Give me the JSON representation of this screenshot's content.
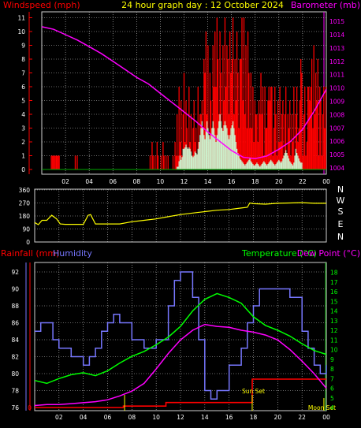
{
  "header": {
    "left_title": "Windspeed (mph)",
    "center_title": "24 hour graph day : 12 October 2024",
    "right_title": "Barometer (mb)"
  },
  "colors": {
    "background": "#000000",
    "grid": "#cfcfcf",
    "red": "#ff0000",
    "magenta": "#ff00ff",
    "yellow": "#ffff00",
    "green": "#00ff00",
    "blue": "#7777ff",
    "pale_green": "#ccf0cc",
    "dark_green": "#00aa00",
    "white": "#ffffff"
  },
  "chart_data": [
    {
      "id": "wind-pressure",
      "type": "line",
      "xlabel": "",
      "x_ticks": [
        "02",
        "04",
        "06",
        "08",
        "10",
        "12",
        "14",
        "16",
        "18",
        "20",
        "22",
        "00"
      ],
      "left_axis": {
        "label": "Windspeed (mph)",
        "ticks": [
          "0",
          "1",
          "2",
          "3",
          "4",
          "5",
          "6",
          "7",
          "8",
          "9",
          "10",
          "11"
        ],
        "ylim": [
          0,
          11.5
        ]
      },
      "right_axis": {
        "label": "Barometer (mb)",
        "ticks": [
          "1004",
          "1005",
          "1006",
          "1007",
          "1008",
          "1009",
          "1010",
          "1011",
          "1012",
          "1013",
          "1014",
          "1015"
        ],
        "ylim": [
          1003.6,
          1015.8
        ]
      },
      "series": [
        {
          "name": "Barometer (mb)",
          "axis": "right",
          "style": "line",
          "x": [
            0,
            1,
            2,
            3,
            4,
            5,
            6,
            7,
            8,
            9,
            10,
            11,
            12,
            13,
            14,
            15,
            16,
            17,
            18,
            19,
            20,
            21,
            22,
            23,
            24
          ],
          "values": [
            1014.6,
            1014.4,
            1014.0,
            1013.6,
            1013.1,
            1012.6,
            1012.0,
            1011.4,
            1010.8,
            1010.3,
            1009.6,
            1008.9,
            1008.2,
            1007.5,
            1006.7,
            1006.0,
            1005.3,
            1004.8,
            1004.7,
            1004.9,
            1005.4,
            1006.0,
            1006.9,
            1008.3,
            1009.9
          ]
        }
      ]
    },
    {
      "id": "wind-direction",
      "type": "line",
      "x_ticks": [
        "02",
        "04",
        "06",
        "08",
        "10",
        "12",
        "14",
        "16",
        "18",
        "20",
        "22",
        "00"
      ],
      "left_axis": {
        "ticks": [
          "0",
          "90",
          "180",
          "270",
          "360"
        ],
        "ylim": [
          0,
          360
        ]
      },
      "right_axis": {
        "ticks": [
          "N",
          "E",
          "S",
          "W",
          "N"
        ]
      },
      "series": [
        {
          "name": "",
          "style": "line",
          "x": [
            0,
            0.3,
            0.6,
            1,
            1.4,
            1.8,
            2.1,
            2.5,
            3,
            4,
            4.4,
            4.6,
            5,
            5.5,
            6,
            7,
            8,
            9,
            10,
            11,
            12,
            13,
            14,
            15,
            16,
            17,
            17.5,
            17.7,
            18,
            19,
            20,
            21,
            22,
            23,
            24
          ],
          "values": [
            135,
            120,
            150,
            150,
            185,
            160,
            125,
            122,
            122,
            122,
            185,
            190,
            125,
            125,
            125,
            125,
            140,
            150,
            160,
            175,
            190,
            200,
            210,
            220,
            225,
            235,
            240,
            270,
            265,
            262,
            268,
            270,
            272,
            268,
            268
          ]
        }
      ]
    },
    {
      "id": "temp-rain-humidity",
      "type": "line",
      "x_ticks": [
        "02",
        "04",
        "06",
        "08",
        "10",
        "12",
        "14",
        "16",
        "18",
        "20",
        "22",
        "00"
      ],
      "left_axis": {
        "label": "Humidity",
        "ticks": [
          "76",
          "78",
          "80",
          "82",
          "84",
          "86",
          "88",
          "90",
          "92"
        ],
        "ylim": [
          75.6,
          93.6
        ]
      },
      "rain_axis": {
        "label": "Rainfall (mm)",
        "ticks": [
          "0"
        ]
      },
      "right_axis": {
        "label": "Temperature (°C)",
        "label2": "Dew Point (°C)",
        "ticks": [
          "4",
          "5",
          "6",
          "7",
          "8",
          "9",
          "10",
          "11",
          "12",
          "13",
          "14",
          "15",
          "16",
          "17",
          "18"
        ],
        "ylim": [
          3.6,
          18.6
        ]
      },
      "annotations": {
        "sunset": "Sun Set",
        "moonset": "Moon Set"
      },
      "series": [
        {
          "name": "Humidity",
          "axis": "left",
          "style": "step",
          "x": [
            0,
            0.5,
            1,
            1.5,
            2,
            3,
            4,
            4.5,
            5,
            5.5,
            6,
            6.5,
            7,
            8,
            9,
            10,
            11,
            11.5,
            12,
            13,
            13.5,
            14,
            14.5,
            15,
            16,
            17,
            17.5,
            18,
            18.5,
            19,
            20,
            21,
            22,
            22.5,
            23,
            23.5,
            24
          ],
          "values": [
            85,
            86,
            86,
            84,
            83,
            82,
            81,
            82,
            83,
            85,
            86,
            87,
            86,
            84,
            83,
            84,
            88,
            91,
            92,
            89,
            84,
            78,
            77,
            78,
            81,
            83,
            86,
            88,
            90,
            90,
            90,
            89,
            85,
            83,
            81,
            80,
            81
          ]
        },
        {
          "name": "Temperature (°C)",
          "axis": "right",
          "style": "line",
          "x": [
            0,
            1,
            2,
            3,
            4,
            5,
            6,
            7,
            8,
            9,
            10,
            11,
            12,
            13,
            14,
            15,
            16,
            17,
            18,
            19,
            20,
            21,
            22,
            23,
            24
          ],
          "values": [
            6.8,
            6.5,
            7.0,
            7.4,
            7.6,
            7.3,
            7.8,
            8.6,
            9.3,
            9.8,
            10.5,
            11.3,
            12.4,
            14.0,
            15.2,
            15.8,
            15.4,
            14.8,
            13.4,
            12.5,
            12.0,
            11.4,
            10.6,
            9.9,
            9.5
          ]
        },
        {
          "name": "Dew Point (°C)",
          "axis": "right",
          "style": "line",
          "x": [
            0,
            1,
            2,
            3,
            4,
            5,
            6,
            7,
            8,
            9,
            10,
            11,
            12,
            13,
            14,
            15,
            16,
            17,
            18,
            19,
            20,
            21,
            22,
            23,
            24
          ],
          "values": [
            4.2,
            4.3,
            4.3,
            4.4,
            4.5,
            4.6,
            4.8,
            5.2,
            5.7,
            6.5,
            8.0,
            9.6,
            11.0,
            12.0,
            12.6,
            12.4,
            12.3,
            12.0,
            11.8,
            11.5,
            11.0,
            10.0,
            8.8,
            7.5,
            6.0
          ]
        },
        {
          "name": "Rainfall (mm)",
          "axis": "rain",
          "style": "step",
          "x": [
            0,
            7.3,
            10.8,
            17.9,
            24
          ],
          "values": [
            0,
            0.02,
            0.07,
            0.4,
            0.4
          ]
        }
      ]
    }
  ],
  "wind_samples": {
    "gust": [
      0,
      0,
      0,
      0,
      0,
      0,
      0,
      0,
      0,
      1,
      1,
      1,
      1,
      1,
      1,
      1,
      1,
      1,
      0,
      0,
      0,
      0,
      0,
      0,
      0,
      0,
      0,
      0,
      0,
      0,
      0,
      0,
      0,
      1,
      0,
      1,
      0,
      0,
      0,
      0,
      0,
      0,
      0,
      0,
      0,
      0,
      0,
      0,
      0,
      0,
      0,
      0,
      0,
      0,
      0,
      0,
      0,
      0,
      0,
      0,
      0,
      0,
      0,
      0,
      0,
      0,
      0,
      0,
      0,
      0,
      0,
      0,
      0,
      0,
      0,
      0,
      0,
      0,
      0,
      0,
      0,
      0,
      0,
      0,
      0,
      0,
      0,
      0,
      0,
      0,
      0,
      0,
      0,
      0,
      0,
      0,
      0,
      0,
      0,
      0,
      0,
      0,
      0,
      0,
      0,
      0,
      0,
      0,
      1,
      0,
      2,
      1,
      0,
      1,
      0,
      2,
      1,
      0,
      0,
      1,
      0,
      2,
      1,
      0,
      1,
      0,
      1,
      0,
      0,
      0,
      0,
      1,
      0,
      2,
      1,
      4,
      1,
      6,
      2,
      5,
      1,
      4,
      7,
      2,
      5,
      3,
      1,
      6,
      2,
      4,
      1,
      3,
      5,
      2,
      3,
      1,
      6,
      2,
      4,
      4,
      5,
      3,
      8,
      7,
      10,
      4,
      9,
      2,
      7,
      5,
      3,
      9,
      6,
      10,
      6,
      11,
      8,
      4,
      10,
      7,
      3,
      9,
      5,
      11,
      6,
      9,
      8,
      4,
      10,
      7,
      8,
      11,
      4,
      8,
      5,
      10,
      7,
      3,
      8,
      8,
      11,
      5,
      11,
      4,
      9,
      3,
      10,
      7,
      3,
      7,
      3,
      6,
      2,
      5,
      4,
      4,
      2,
      5,
      4,
      7,
      4,
      6,
      1,
      6,
      3,
      3,
      5,
      6,
      5,
      6,
      6,
      1,
      3,
      6,
      4,
      1,
      5,
      2,
      6,
      2,
      4,
      5,
      1,
      4,
      6,
      1,
      4,
      3,
      5,
      1,
      4,
      2,
      6,
      1,
      4,
      6,
      2,
      3,
      5,
      8,
      7,
      1,
      4,
      6,
      1,
      2,
      6,
      6,
      5,
      6,
      8,
      3,
      9,
      4,
      7,
      5,
      8,
      1,
      6,
      5,
      1,
      4,
      6,
      3,
      6
    ],
    "avg": [
      0,
      0,
      0,
      0,
      0,
      0,
      0,
      0,
      0,
      0,
      0,
      0,
      0,
      0,
      0,
      0,
      0,
      0,
      0,
      0,
      0,
      0,
      0,
      0,
      0,
      0,
      0,
      0,
      0,
      0,
      0,
      0,
      0,
      0,
      0,
      0,
      0,
      0,
      0,
      0,
      0,
      0,
      0,
      0,
      0,
      0,
      0,
      0,
      0,
      0,
      0,
      0,
      0,
      0,
      0,
      0,
      0,
      0,
      0,
      0,
      0,
      0,
      0,
      0,
      0,
      0,
      0,
      0,
      0,
      0,
      0,
      0,
      0,
      0,
      0,
      0,
      0,
      0,
      0,
      0,
      0,
      0,
      0,
      0,
      0,
      0,
      0,
      0,
      0,
      0,
      0,
      0,
      0,
      0,
      0,
      0,
      0,
      0,
      0,
      0,
      0,
      0,
      0,
      0,
      0,
      0,
      0,
      0,
      0,
      0,
      0,
      0,
      0,
      0,
      0,
      0,
      0,
      0,
      0,
      0,
      0,
      0,
      0,
      0,
      0,
      0,
      0,
      0,
      0,
      0,
      0,
      0,
      0,
      0,
      0,
      0.2,
      0.2,
      0.6,
      1,
      0.7,
      0.9,
      1.5,
      1.5,
      1.6,
      1.8,
      1.6,
      1.5,
      1.6,
      1.5,
      1.3,
      1,
      0.9,
      1,
      1.3,
      1.2,
      1.1,
      1.5,
      2,
      2.5,
      3,
      3.5,
      3,
      2.5,
      2.2,
      2.8,
      3.5,
      3,
      2.5,
      2.2,
      2.5,
      3,
      3.5,
      3,
      2.5,
      2,
      2.5,
      3,
      3.5,
      4,
      3.5,
      3,
      2.8,
      3.2,
      3.5,
      3.2,
      3,
      2.5,
      2.2,
      2.5,
      3,
      3.2,
      3.5,
      3,
      2.5,
      2,
      1.5,
      1.2,
      1,
      0.8,
      0.7,
      0.6,
      0.5,
      0.4,
      0.3,
      0.4,
      0.5,
      0.6,
      0.7,
      0.8,
      0.6,
      0.5,
      0.4,
      0.3,
      0.3,
      0.4,
      0.5,
      0.4,
      0.3,
      0.2,
      0.3,
      0.4,
      0.5,
      0.6,
      0.5,
      0.4,
      0.3,
      0.4,
      0.5,
      0.6,
      0.7,
      0.6,
      0.5,
      0.4,
      0.3,
      0.4,
      0.5,
      0.6,
      0.7,
      0.6,
      0.5,
      0.6,
      0.8,
      1,
      1.2,
      1.4,
      1.2,
      1,
      0.8,
      0.6,
      0.5,
      0.4,
      0.3,
      0.5,
      1,
      1.5,
      1.2,
      1,
      0.8,
      0.6,
      0.5,
      0.5
    ]
  }
}
